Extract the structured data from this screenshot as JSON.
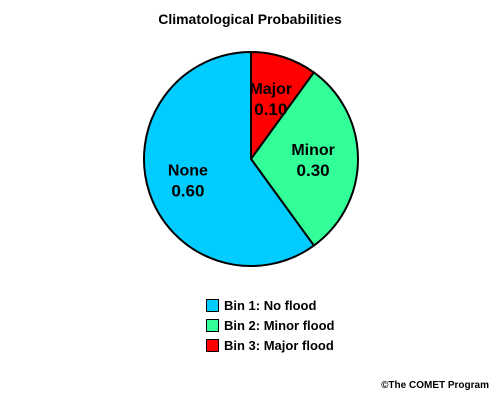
{
  "chart_data": {
    "type": "pie",
    "title": "Climatological Probabilities",
    "slices": [
      {
        "label": "Major",
        "value": 0.1,
        "display": "0.10",
        "color": "#ff0000"
      },
      {
        "label": "Minor",
        "value": 0.3,
        "display": "0.30",
        "color": "#33ff99"
      },
      {
        "label": "None",
        "value": 0.6,
        "display": "0.60",
        "color": "#00ccff"
      }
    ],
    "legend": {
      "placement": "bottom",
      "entries": [
        {
          "label": "Bin 1: No flood",
          "color": "#00ccff"
        },
        {
          "label": "Bin 2: Minor flood",
          "color": "#33ff99"
        },
        {
          "label": "Bin 3: Major flood",
          "color": "#ff0000"
        }
      ]
    }
  },
  "copyright": "©The COMET Program"
}
